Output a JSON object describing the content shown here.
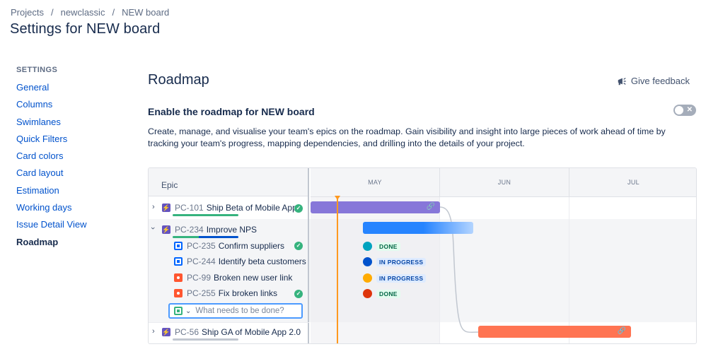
{
  "breadcrumb": {
    "items": [
      "Projects",
      "newclassic",
      "NEW board"
    ],
    "separator": "/"
  },
  "page_title": "Settings for NEW board",
  "sidebar": {
    "heading": "SETTINGS",
    "items": [
      "General",
      "Columns",
      "Swimlanes",
      "Quick Filters",
      "Card colors",
      "Card layout",
      "Estimation",
      "Working days",
      "Issue Detail View",
      "Roadmap"
    ],
    "active": "Roadmap"
  },
  "main": {
    "title": "Roadmap",
    "feedback_label": "Give feedback",
    "enable_label": "Enable the roadmap for NEW board",
    "toggle_on": false,
    "description": "Create, manage, and visualise your team's epics on the roadmap. Gain visibility and insight into large pieces of work ahead of time by tracking your team's progress, mapping dependencies, and drilling into the details of your project."
  },
  "roadmap": {
    "column_header": "Epic",
    "months": [
      "MAY",
      "JUN",
      "JUL"
    ],
    "epics": [
      {
        "key": "PC-101",
        "summary": "Ship Beta of Mobile App",
        "done": true,
        "expanded": false,
        "color": "#8777d9",
        "progress_color": "#36b37e"
      },
      {
        "key": "PC-234",
        "summary": "Improve NPS",
        "done": false,
        "expanded": true,
        "color": "#2684ff",
        "progress_color": "#0052cc"
      },
      {
        "key": "PC-56",
        "summary": "Ship GA of Mobile App 2.0",
        "done": false,
        "expanded": false,
        "color": "#ff7452",
        "progress_color": "#c1c7d0"
      }
    ],
    "children": [
      {
        "key": "PC-235",
        "summary": "Confirm suppliers",
        "type": "task",
        "done": true,
        "status": "DONE"
      },
      {
        "key": "PC-244",
        "summary": "Identify beta customers",
        "type": "task",
        "done": false,
        "status": "IN PROGRESS"
      },
      {
        "key": "PC-99",
        "summary": "Broken new user link",
        "type": "bug",
        "done": false,
        "status": "IN PROGRESS"
      },
      {
        "key": "PC-255",
        "summary": "Fix broken links",
        "type": "bug",
        "done": true,
        "status": "DONE"
      }
    ],
    "create_placeholder": "What needs to be done?",
    "colors": {
      "today": "#ff991f",
      "dependency": "#c1c7d0"
    }
  }
}
